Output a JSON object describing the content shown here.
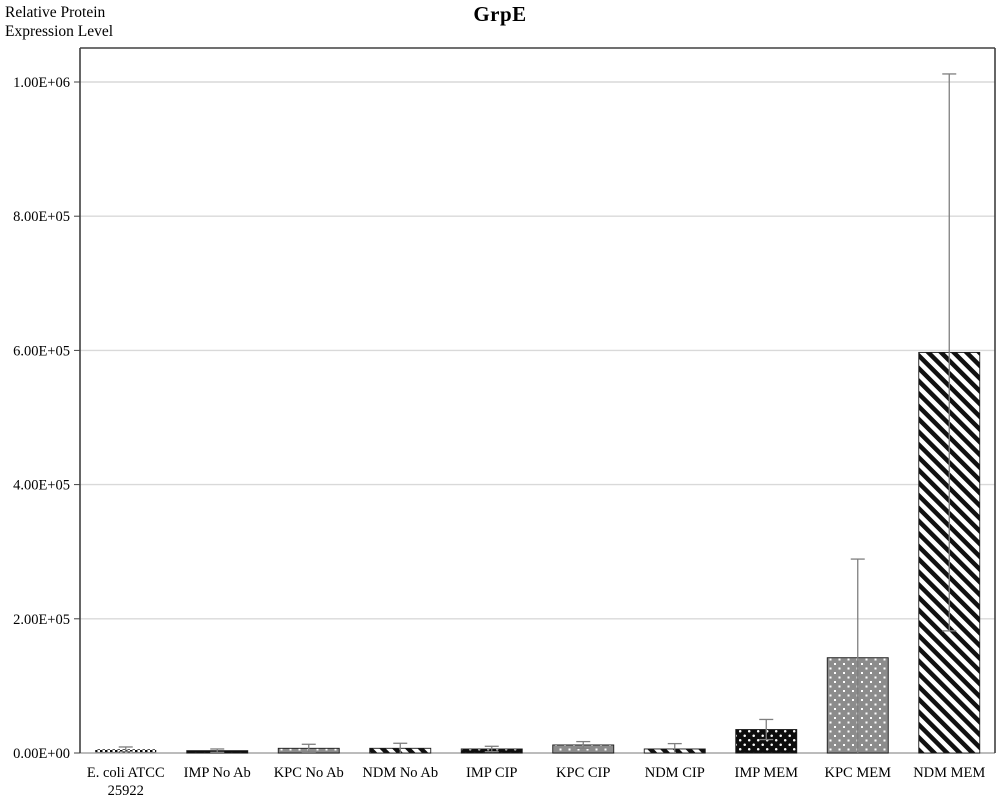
{
  "title": "GrpE",
  "y_axis_title": {
    "line1": "Relative Protein",
    "line2": "Expression Level"
  },
  "colors": {
    "background": "#ffffff",
    "text": "#000000",
    "axis_border": "#404040",
    "baseline": "#a6a6a6",
    "gridline": "#d9d9d9",
    "error_bar": "#7f7f7f",
    "bar_black": "#0d0d0d",
    "bar_gray": "#8c8c8c",
    "bar_stripe": "#111111",
    "pattern_dot": "#ffffff"
  },
  "chart_data": {
    "type": "bar",
    "title": "GrpE",
    "xlabel": "",
    "ylabel": "Relative Protein Expression Level",
    "categories": [
      "E. coli ATCC 25922",
      "IMP No Ab",
      "KPC No Ab",
      "NDM No Ab",
      "IMP CIP",
      "KPC CIP",
      "NDM CIP",
      "IMP MEM",
      "KPC MEM",
      "NDM MEM"
    ],
    "category_label_lines": [
      [
        "E. coli ATCC",
        "25922"
      ],
      [
        "IMP No Ab"
      ],
      [
        "KPC No Ab"
      ],
      [
        "NDM No Ab"
      ],
      [
        "IMP CIP"
      ],
      [
        "KPC CIP"
      ],
      [
        "NDM CIP"
      ],
      [
        "IMP MEM"
      ],
      [
        "KPC MEM"
      ],
      [
        "NDM MEM"
      ]
    ],
    "values": [
      5500,
      3500,
      7000,
      7000,
      6000,
      12000,
      6000,
      35000,
      142000,
      597000
    ],
    "errors": [
      3500,
      2500,
      6000,
      7500,
      4000,
      5000,
      8000,
      15000,
      147000,
      415000
    ],
    "patterns": [
      "checker",
      "black-dots",
      "gray-dots",
      "diag-stripes",
      "black-dots",
      "gray-dots",
      "diag-stripes",
      "black-dots",
      "gray-dots",
      "diag-stripes"
    ],
    "y_ticks": [
      0,
      200000,
      400000,
      600000,
      800000,
      1000000
    ],
    "y_tick_labels": [
      "0.00E+00",
      "2.00E+05",
      "4.00E+05",
      "6.00E+05",
      "8.00E+05",
      "1.00E+06"
    ],
    "ylim": [
      0,
      1050000
    ],
    "grid": true,
    "legend": false
  }
}
